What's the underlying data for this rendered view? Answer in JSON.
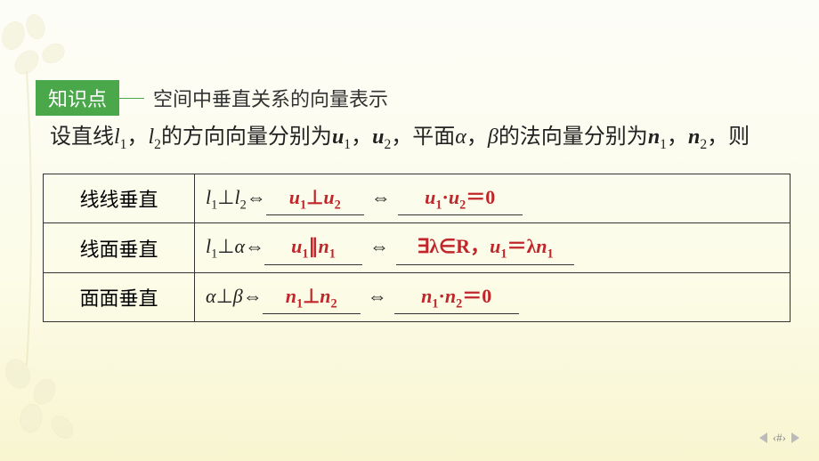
{
  "colors": {
    "badge_bg": "#4aa84a",
    "badge_text": "#ffffff",
    "answer_text": "#c0262a",
    "body_text": "#222222",
    "border": "#333333",
    "bg_top": "#fdfdf8",
    "bg_bottom": "#f8f5d0"
  },
  "typography": {
    "body_fontsize_pt": 18,
    "badge_fontsize_pt": 16,
    "font_family": "SimSun / Songti"
  },
  "header": {
    "badge": "知识点",
    "title": "空间中垂直关系的向量表示"
  },
  "intro": {
    "prefix": "设直线",
    "l1": "l",
    "l1_sub": "1",
    "comma1": "，",
    "l2": "l",
    "l2_sub": "2",
    "mid1": "的方向向量分别为",
    "u1": "u",
    "u1_sub": "1",
    "comma2": "，",
    "u2": "u",
    "u2_sub": "2",
    "mid2": "，平面",
    "alpha": "α",
    "comma3": "，",
    "beta": "β",
    "mid3": "的法向量分别为",
    "n1": "n",
    "n1_sub": "1",
    "comma4": "，",
    "n2": "n",
    "n2_sub": "2",
    "tail": "，则"
  },
  "table": {
    "rows": [
      {
        "category": "线线垂直",
        "lhs_a": "l",
        "lhs_a_sub": "1",
        "perp": "⊥",
        "lhs_b": "l",
        "lhs_b_sub": "2",
        "iff": "⇔",
        "blank1_a": "u",
        "blank1_a_sub": "1",
        "blank1_op": "⊥",
        "blank1_b": "u",
        "blank1_b_sub": "2",
        "blank2_a": "u",
        "blank2_a_sub": "1",
        "blank2_op": "·",
        "blank2_b": "u",
        "blank2_b_sub": "2",
        "blank2_tail": "＝0",
        "blank1_width_class": "w1",
        "blank2_width_class": "w2"
      },
      {
        "category": "线面垂直",
        "lhs_a": "l",
        "lhs_a_sub": "1",
        "perp": "⊥",
        "lhs_b": "α",
        "lhs_b_sub": "",
        "iff": "⇔",
        "blank1_a": "u",
        "blank1_a_sub": "1",
        "blank1_op": "∥",
        "blank1_b": "n",
        "blank1_b_sub": "1",
        "blank2_pre": "∃λ∈R，",
        "blank2_a": "u",
        "blank2_a_sub": "1",
        "blank2_op": "＝λ",
        "blank2_b": "n",
        "blank2_b_sub": "1",
        "blank2_tail": "",
        "blank1_width_class": "w1",
        "blank2_width_class": "w3"
      },
      {
        "category": "面面垂直",
        "lhs_a": "α",
        "lhs_a_sub": "",
        "perp": "⊥",
        "lhs_b": "β",
        "lhs_b_sub": "",
        "iff": "⇔",
        "blank1_a": "n",
        "blank1_a_sub": "1",
        "blank1_op": "⊥",
        "blank1_b": "n",
        "blank1_b_sub": "2",
        "blank2_a": "n",
        "blank2_a_sub": "1",
        "blank2_op": "·",
        "blank2_b": "n",
        "blank2_b_sub": "2",
        "blank2_tail": "＝0",
        "blank1_width_class": "w1",
        "blank2_width_class": "w2"
      }
    ]
  },
  "pager": {
    "label": "‹#›"
  }
}
